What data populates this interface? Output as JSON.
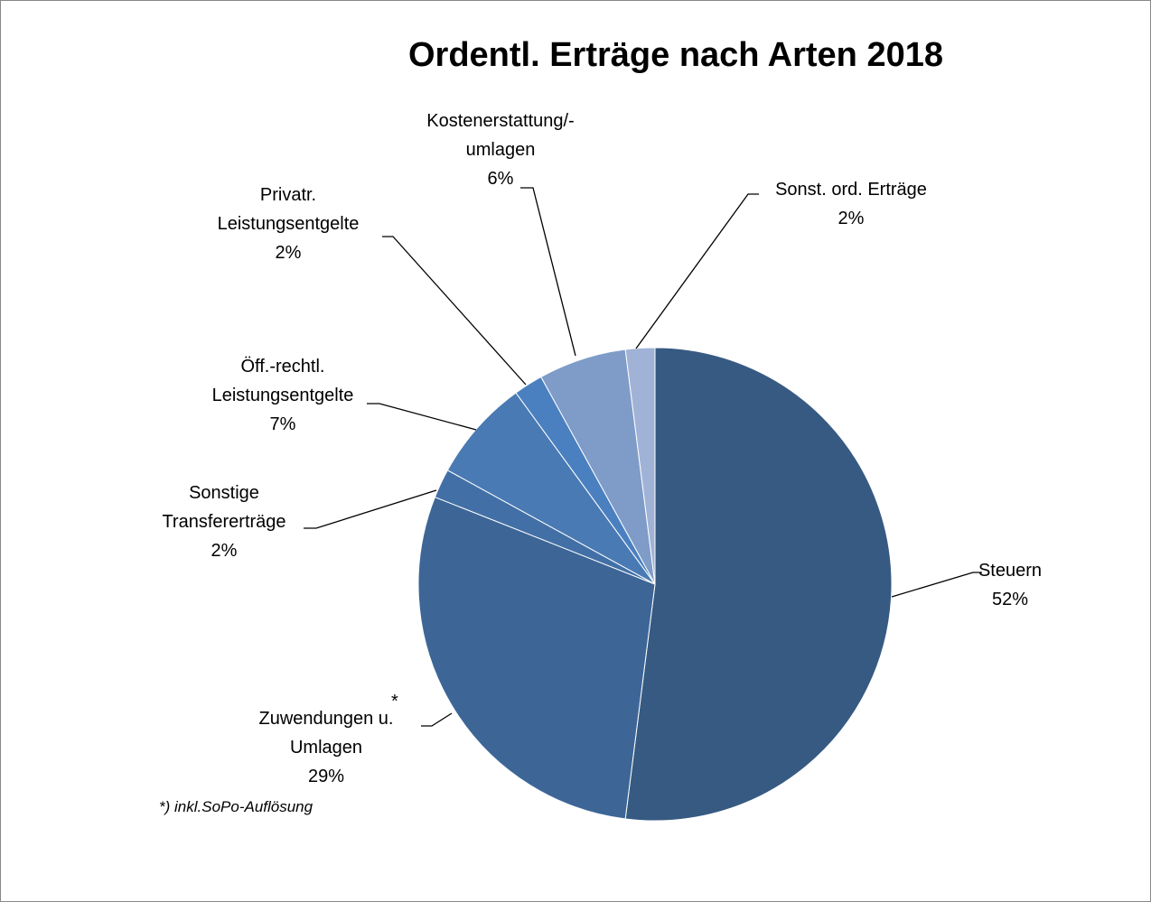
{
  "chart_data": {
    "type": "pie",
    "title": "Ordentl. Erträge nach Arten 2018",
    "categories": [
      "Steuern",
      "Zuwendungen u. Umlagen",
      "Sonstige Transfererträge",
      "Öff.-rechtl. Leistungsentgelte",
      "Privatr. Leistungsentgelte",
      "Kostenerstattung/-umlagen",
      "Sonst. ord. Erträge"
    ],
    "values": [
      52,
      29,
      2,
      7,
      2,
      6,
      2
    ],
    "value_labels": [
      "52%",
      "29%",
      "2%",
      "7%",
      "2%",
      "6%",
      "2%"
    ],
    "colors": [
      "#375a82",
      "#3d6697",
      "#4270a6",
      "#4a7ab4",
      "#4a80c0",
      "#7f9cc8",
      "#a0b3d6"
    ],
    "annotations": [
      "*",
      "*) inkl.SoPo-Auflösung"
    ]
  }
}
